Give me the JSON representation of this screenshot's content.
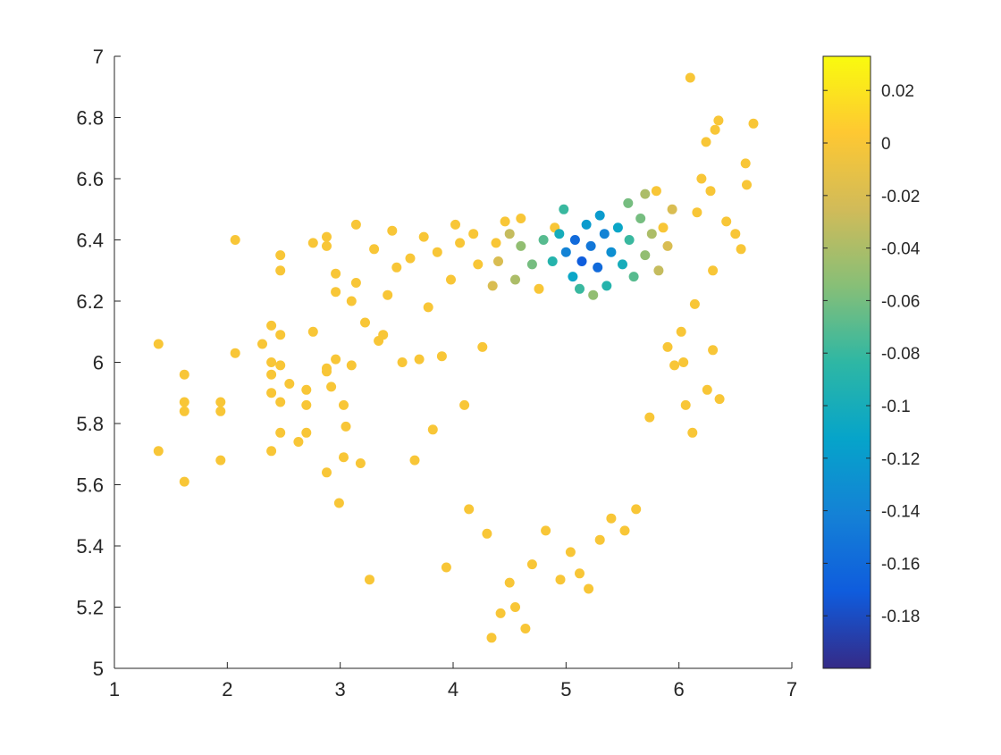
{
  "chart_data": {
    "type": "scatter",
    "title": "",
    "xlabel": "",
    "ylabel": "",
    "xlim": [
      1,
      7
    ],
    "ylim": [
      5,
      7
    ],
    "x_ticks": [
      "1",
      "2",
      "3",
      "4",
      "5",
      "6",
      "7"
    ],
    "y_ticks": [
      "5",
      "5.2",
      "5.4",
      "5.6",
      "5.8",
      "6",
      "6.2",
      "6.4",
      "6.6",
      "6.8",
      "7"
    ],
    "grid": false,
    "colorbar": {
      "colormap": "parula",
      "limits": [
        -0.2,
        0.033
      ],
      "ticks": [
        "0.02",
        "0",
        "-0.02",
        "-0.04",
        "-0.06",
        "-0.08",
        "-0.1",
        "-0.12",
        "-0.14",
        "-0.16",
        "-0.18"
      ],
      "stops": [
        "#352a87",
        "#0f5cdd",
        "#1481d6",
        "#06a4ca",
        "#2eb7a4",
        "#87bf77",
        "#d1bb59",
        "#fec832",
        "#f9fb0e"
      ]
    },
    "series": [
      {
        "points": [
          [
            1.39,
            6.06,
            0
          ],
          [
            1.39,
            5.71,
            0
          ],
          [
            1.62,
            5.96,
            0
          ],
          [
            1.62,
            5.87,
            0
          ],
          [
            1.62,
            5.84,
            0
          ],
          [
            1.62,
            5.61,
            0
          ],
          [
            1.94,
            5.87,
            0
          ],
          [
            1.94,
            5.84,
            0
          ],
          [
            1.94,
            5.68,
            0
          ],
          [
            2.07,
            6.4,
            0
          ],
          [
            2.07,
            6.03,
            0
          ],
          [
            2.31,
            6.06,
            0
          ],
          [
            2.39,
            6.12,
            0
          ],
          [
            2.39,
            6.0,
            0
          ],
          [
            2.39,
            5.96,
            0
          ],
          [
            2.39,
            5.9,
            0
          ],
          [
            2.39,
            5.71,
            0
          ],
          [
            2.47,
            6.35,
            0
          ],
          [
            2.47,
            6.3,
            0
          ],
          [
            2.47,
            6.09,
            0
          ],
          [
            2.47,
            5.99,
            0
          ],
          [
            2.47,
            5.87,
            0
          ],
          [
            2.47,
            5.77,
            0
          ],
          [
            2.55,
            5.93,
            0
          ],
          [
            2.63,
            5.74,
            0
          ],
          [
            2.7,
            5.91,
            0
          ],
          [
            2.7,
            5.86,
            0
          ],
          [
            2.7,
            5.77,
            0
          ],
          [
            2.76,
            6.39,
            0
          ],
          [
            2.76,
            6.1,
            0
          ],
          [
            2.88,
            6.41,
            0
          ],
          [
            2.88,
            6.38,
            0
          ],
          [
            2.88,
            5.98,
            0
          ],
          [
            2.88,
            5.97,
            0
          ],
          [
            2.88,
            5.64,
            0
          ],
          [
            2.92,
            5.92,
            0
          ],
          [
            2.96,
            6.29,
            0
          ],
          [
            2.96,
            6.23,
            0
          ],
          [
            2.96,
            6.01,
            0
          ],
          [
            2.99,
            5.54,
            0
          ],
          [
            3.03,
            5.86,
            0
          ],
          [
            3.03,
            5.69,
            0
          ],
          [
            3.05,
            5.79,
            0
          ],
          [
            3.1,
            6.2,
            0
          ],
          [
            3.1,
            5.99,
            0
          ],
          [
            3.14,
            6.45,
            0
          ],
          [
            3.14,
            6.26,
            0
          ],
          [
            3.18,
            5.67,
            0
          ],
          [
            3.22,
            6.13,
            0
          ],
          [
            3.26,
            5.29,
            0
          ],
          [
            3.3,
            6.37,
            0
          ],
          [
            3.34,
            6.07,
            0
          ],
          [
            3.38,
            6.09,
            0
          ],
          [
            3.42,
            6.22,
            0
          ],
          [
            3.46,
            6.43,
            0
          ],
          [
            3.5,
            6.31,
            0
          ],
          [
            3.55,
            6.0,
            0
          ],
          [
            3.62,
            6.34,
            0
          ],
          [
            3.66,
            5.68,
            0
          ],
          [
            3.7,
            6.01,
            0
          ],
          [
            3.74,
            6.41,
            0
          ],
          [
            3.78,
            6.18,
            0
          ],
          [
            3.82,
            5.78,
            0
          ],
          [
            3.86,
            6.36,
            0
          ],
          [
            3.9,
            6.02,
            0
          ],
          [
            3.94,
            5.33,
            0
          ],
          [
            3.98,
            6.27,
            0
          ],
          [
            4.02,
            6.45,
            0
          ],
          [
            4.06,
            6.39,
            0
          ],
          [
            4.1,
            5.86,
            0
          ],
          [
            4.14,
            5.52,
            0
          ],
          [
            4.18,
            6.42,
            0
          ],
          [
            4.22,
            6.32,
            0
          ],
          [
            4.26,
            6.05,
            0
          ],
          [
            4.3,
            5.44,
            0
          ],
          [
            4.34,
            5.1,
            0
          ],
          [
            4.38,
            6.39,
            0
          ],
          [
            4.42,
            5.18,
            0
          ],
          [
            4.46,
            6.46,
            0
          ],
          [
            4.5,
            5.28,
            0
          ],
          [
            4.55,
            5.2,
            0
          ],
          [
            4.6,
            6.47,
            0
          ],
          [
            4.64,
            5.13,
            0
          ],
          [
            4.7,
            5.34,
            0
          ],
          [
            4.76,
            6.24,
            0
          ],
          [
            4.82,
            5.45,
            0
          ],
          [
            4.9,
            6.44,
            0
          ],
          [
            4.95,
            5.29,
            0
          ],
          [
            5.04,
            5.38,
            0
          ],
          [
            5.12,
            5.31,
            0
          ],
          [
            5.2,
            5.26,
            0
          ],
          [
            5.3,
            5.42,
            0
          ],
          [
            5.4,
            5.49,
            0
          ],
          [
            5.52,
            5.45,
            0
          ],
          [
            5.62,
            5.52,
            0
          ],
          [
            5.74,
            5.82,
            0
          ],
          [
            5.8,
            6.56,
            0
          ],
          [
            5.86,
            6.44,
            0
          ],
          [
            5.9,
            6.05,
            0
          ],
          [
            5.96,
            5.99,
            0
          ],
          [
            6.02,
            6.1,
            0
          ],
          [
            6.04,
            6.0,
            0
          ],
          [
            6.06,
            5.86,
            0
          ],
          [
            6.1,
            6.93,
            0
          ],
          [
            6.12,
            5.77,
            0
          ],
          [
            6.16,
            6.49,
            0
          ],
          [
            6.2,
            6.6,
            0
          ],
          [
            6.24,
            6.72,
            0
          ],
          [
            6.28,
            6.56,
            0
          ],
          [
            6.3,
            6.04,
            0
          ],
          [
            6.32,
            6.76,
            0
          ],
          [
            6.35,
            6.79,
            0
          ],
          [
            6.36,
            5.88,
            0
          ],
          [
            6.42,
            6.46,
            0
          ],
          [
            6.5,
            6.42,
            0
          ],
          [
            6.55,
            6.37,
            0
          ],
          [
            6.59,
            6.65,
            0
          ],
          [
            6.6,
            6.58,
            0
          ],
          [
            6.66,
            6.78,
            0
          ],
          [
            6.25,
            5.91,
            0
          ],
          [
            6.3,
            6.3,
            0
          ],
          [
            6.14,
            6.19,
            0
          ],
          [
            5.0,
            6.36,
            -0.14
          ],
          [
            5.08,
            6.4,
            -0.16
          ],
          [
            5.14,
            6.33,
            -0.17
          ],
          [
            5.22,
            6.38,
            -0.15
          ],
          [
            5.28,
            6.31,
            -0.16
          ],
          [
            5.34,
            6.42,
            -0.14
          ],
          [
            5.18,
            6.45,
            -0.12
          ],
          [
            5.4,
            6.36,
            -0.13
          ],
          [
            5.06,
            6.28,
            -0.11
          ],
          [
            4.94,
            6.42,
            -0.1
          ],
          [
            5.46,
            6.44,
            -0.11
          ],
          [
            5.3,
            6.48,
            -0.12
          ],
          [
            4.88,
            6.33,
            -0.09
          ],
          [
            5.5,
            6.32,
            -0.1
          ],
          [
            5.12,
            6.24,
            -0.08
          ],
          [
            5.36,
            6.25,
            -0.09
          ],
          [
            4.8,
            6.4,
            -0.07
          ],
          [
            4.7,
            6.32,
            -0.06
          ],
          [
            5.56,
            6.4,
            -0.08
          ],
          [
            5.6,
            6.28,
            -0.07
          ],
          [
            4.6,
            6.38,
            -0.05
          ],
          [
            4.55,
            6.27,
            -0.04
          ],
          [
            4.5,
            6.42,
            -0.03
          ],
          [
            5.66,
            6.47,
            -0.06
          ],
          [
            5.7,
            6.35,
            -0.05
          ],
          [
            5.76,
            6.42,
            -0.04
          ],
          [
            5.82,
            6.3,
            -0.03
          ],
          [
            5.9,
            6.38,
            -0.02
          ],
          [
            4.4,
            6.33,
            -0.02
          ],
          [
            4.35,
            6.25,
            -0.02
          ],
          [
            5.94,
            6.5,
            -0.02
          ],
          [
            5.7,
            6.55,
            -0.04
          ],
          [
            5.55,
            6.52,
            -0.06
          ],
          [
            4.98,
            6.5,
            -0.08
          ],
          [
            5.24,
            6.22,
            -0.05
          ]
        ]
      }
    ]
  }
}
